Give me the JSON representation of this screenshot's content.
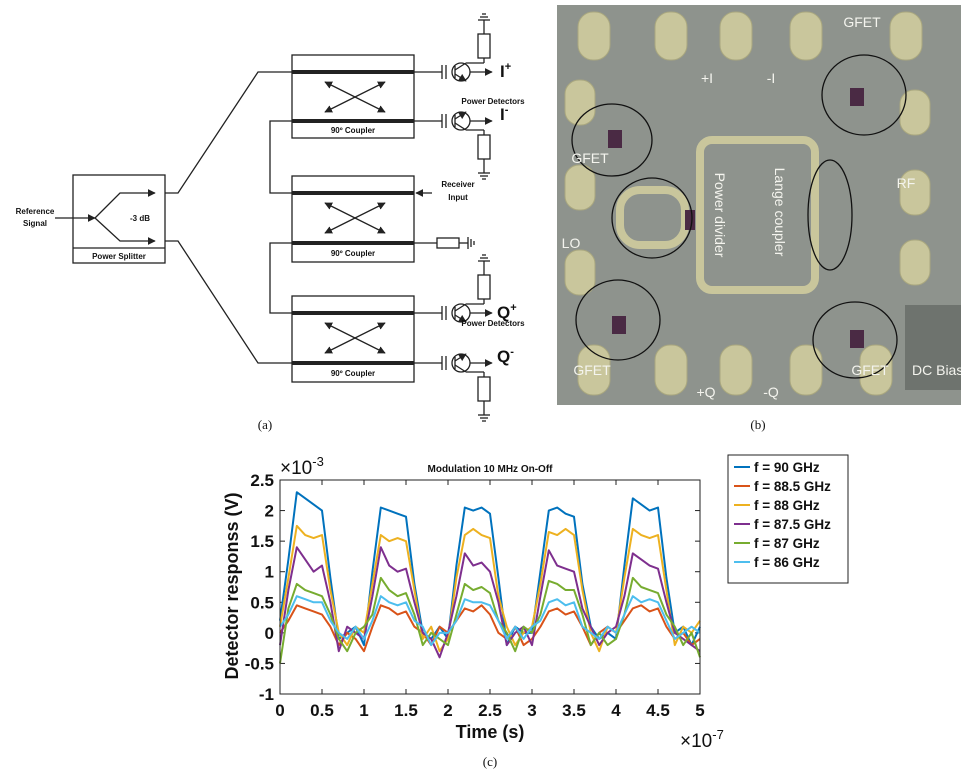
{
  "panel_a": {
    "caption": "(a)",
    "reference_signal": [
      "Reference",
      "Signal"
    ],
    "splitter_gain": "-3 dB",
    "splitter_label": "Power Splitter",
    "coupler_labels": [
      "90º Coupler",
      "90º Coupler",
      "90º Coupler"
    ],
    "detector_labels": [
      "Power Detectors",
      "Power Detectors"
    ],
    "receiver_input": [
      "Receiver",
      "Input"
    ],
    "outputs": [
      {
        "base": "I",
        "sup": "+"
      },
      {
        "base": "I",
        "sup": "-"
      },
      {
        "base": "Q",
        "sup": "+"
      },
      {
        "base": "Q",
        "sup": "-"
      }
    ]
  },
  "panel_b": {
    "caption": "(b)",
    "labels": [
      "GFET",
      "+I",
      "-I",
      "GFET",
      "RF",
      "LO",
      "Power divider",
      "Lange coupler",
      "GFET",
      "+Q",
      "-Q",
      "GFET",
      "DC Bias"
    ]
  },
  "chart_data": {
    "type": "line",
    "caption": "(c)",
    "title": "Modulation 10 MHz On-Off",
    "xlabel": "Time (s)",
    "ylabel": "Detector responss (V)",
    "x_multiplier": {
      "base": "×10",
      "exp": "-7"
    },
    "y_multiplier": {
      "base": "×10",
      "exp": "-3"
    },
    "xlim": [
      0,
      5
    ],
    "ylim": [
      -1,
      2.5
    ],
    "xticks": [
      0,
      0.5,
      1,
      1.5,
      2,
      2.5,
      3,
      3.5,
      4,
      4.5,
      5
    ],
    "yticks": [
      -1,
      -0.5,
      0,
      0.5,
      1,
      1.5,
      2,
      2.5
    ],
    "legend": "upper right",
    "grid": false,
    "x": [
      0,
      0.1,
      0.2,
      0.3,
      0.4,
      0.5,
      0.6,
      0.7,
      0.8,
      0.9,
      1,
      1.1,
      1.2,
      1.3,
      1.4,
      1.5,
      1.6,
      1.7,
      1.8,
      1.9,
      2,
      2.1,
      2.2,
      2.3,
      2.4,
      2.5,
      2.6,
      2.7,
      2.8,
      2.9,
      3,
      3.1,
      3.2,
      3.3,
      3.4,
      3.5,
      3.6,
      3.7,
      3.8,
      3.9,
      4,
      4.1,
      4.2,
      4.3,
      4.4,
      4.5,
      4.6,
      4.7,
      4.8,
      4.9,
      5
    ],
    "series": [
      {
        "name": "f = 90 GHz",
        "color": "#0072bd",
        "values": [
          0.2,
          1.2,
          2.3,
          2.2,
          2.1,
          2.0,
          0.9,
          -0.1,
          0.0,
          0.1,
          -0.2,
          1.0,
          2.05,
          2.0,
          1.95,
          1.9,
          0.8,
          0.0,
          -0.1,
          0.1,
          -0.1,
          1.1,
          2.05,
          2.0,
          2.05,
          1.95,
          0.9,
          -0.2,
          0.1,
          0.0,
          0.0,
          1.0,
          2.0,
          2.05,
          1.95,
          1.9,
          0.8,
          0.1,
          -0.1,
          0.0,
          -0.1,
          1.1,
          2.2,
          2.1,
          2.0,
          2.05,
          0.9,
          0.0,
          0.1,
          -0.2,
          0.1
        ]
      },
      {
        "name": "f = 88.5 GHz",
        "color": "#d95319",
        "values": [
          0.0,
          0.2,
          0.45,
          0.4,
          0.35,
          0.3,
          0.1,
          -0.2,
          0.0,
          -0.1,
          -0.3,
          0.1,
          0.45,
          0.4,
          0.3,
          0.35,
          0.1,
          0.0,
          -0.2,
          0.1,
          0.0,
          0.2,
          0.4,
          0.35,
          0.45,
          0.3,
          0.0,
          -0.1,
          0.1,
          -0.2,
          -0.1,
          0.1,
          0.35,
          0.4,
          0.3,
          0.35,
          0.1,
          -0.2,
          0.0,
          0.1,
          0.0,
          0.2,
          0.4,
          0.45,
          0.35,
          0.4,
          0.1,
          -0.1,
          0.0,
          -0.2,
          -0.1
        ]
      },
      {
        "name": "f = 88 GHz",
        "color": "#edb120",
        "values": [
          0.1,
          0.9,
          1.75,
          1.6,
          1.55,
          1.6,
          0.7,
          0.0,
          -0.2,
          0.1,
          0.0,
          0.8,
          1.6,
          1.5,
          1.55,
          1.5,
          0.7,
          -0.1,
          0.1,
          -0.3,
          -0.1,
          0.9,
          1.6,
          1.7,
          1.6,
          1.55,
          0.6,
          0.1,
          -0.2,
          0.0,
          0.1,
          0.8,
          1.65,
          1.6,
          1.7,
          1.6,
          0.7,
          0.0,
          -0.3,
          0.1,
          0.0,
          0.9,
          1.7,
          1.6,
          1.55,
          1.6,
          0.7,
          -0.2,
          0.1,
          0.0,
          0.2
        ]
      },
      {
        "name": "f = 87.5 GHz",
        "color": "#7e2f8e",
        "values": [
          -0.2,
          0.7,
          1.4,
          1.2,
          1.0,
          1.1,
          0.5,
          -0.3,
          0.1,
          0.0,
          -0.1,
          0.6,
          1.4,
          1.1,
          1.0,
          1.05,
          0.5,
          0.0,
          -0.1,
          -0.4,
          0.0,
          0.6,
          1.3,
          1.1,
          1.15,
          1.0,
          0.5,
          -0.2,
          0.0,
          0.1,
          -0.2,
          0.6,
          1.35,
          1.1,
          1.05,
          1.0,
          0.4,
          0.1,
          -0.2,
          0.0,
          0.1,
          0.6,
          1.3,
          1.2,
          1.1,
          1.05,
          0.5,
          0.0,
          -0.1,
          -0.2,
          -0.3
        ]
      },
      {
        "name": "f = 87 GHz",
        "color": "#77ac30",
        "values": [
          -0.5,
          0.4,
          0.8,
          0.7,
          0.65,
          0.6,
          0.3,
          -0.1,
          -0.3,
          0.0,
          0.1,
          0.3,
          0.9,
          0.7,
          0.6,
          0.65,
          0.3,
          -0.2,
          0.0,
          -0.1,
          -0.2,
          0.3,
          0.8,
          0.7,
          0.75,
          0.65,
          0.2,
          0.0,
          -0.3,
          0.1,
          0.0,
          0.3,
          0.85,
          0.8,
          0.7,
          0.7,
          0.3,
          -0.2,
          0.0,
          -0.2,
          -0.1,
          0.3,
          0.9,
          0.75,
          0.7,
          0.65,
          0.3,
          0.1,
          -0.2,
          0.0,
          -0.4
        ]
      },
      {
        "name": "f = 86 GHz",
        "color": "#4dbeee",
        "values": [
          0.1,
          0.3,
          0.6,
          0.55,
          0.5,
          0.5,
          0.2,
          0.0,
          -0.1,
          0.1,
          -0.1,
          0.2,
          0.6,
          0.5,
          0.45,
          0.5,
          0.2,
          0.1,
          -0.2,
          0.0,
          0.0,
          0.2,
          0.55,
          0.5,
          0.5,
          0.45,
          0.2,
          -0.1,
          0.1,
          -0.1,
          0.1,
          0.2,
          0.5,
          0.55,
          0.45,
          0.5,
          0.1,
          0.0,
          -0.1,
          0.1,
          0.0,
          0.3,
          0.6,
          0.5,
          0.55,
          0.5,
          0.2,
          -0.1,
          0.0,
          0.1,
          0.0
        ]
      }
    ]
  }
}
